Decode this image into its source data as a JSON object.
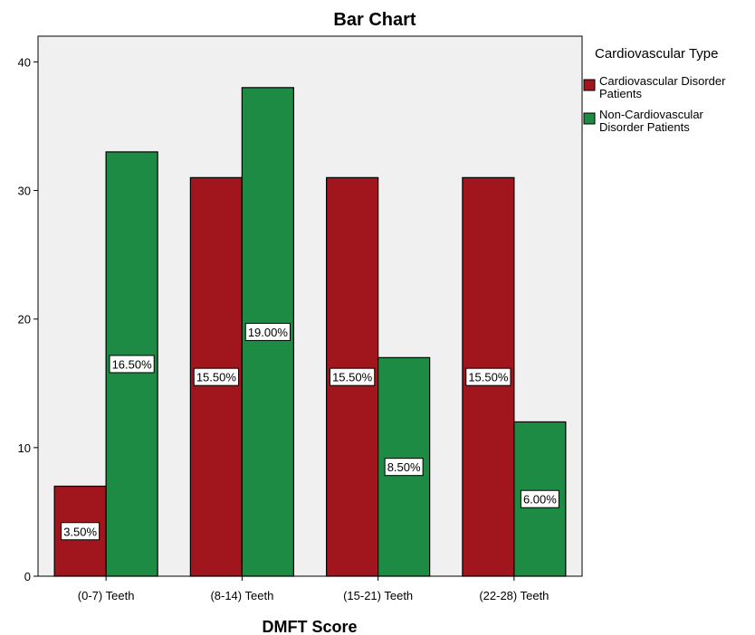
{
  "chart_data": {
    "type": "bar",
    "title": "Bar Chart",
    "xlabel": "DMFT Score",
    "ylabel": "",
    "ylim": [
      0,
      42
    ],
    "yticks": [
      0,
      10,
      20,
      30,
      40
    ],
    "grid": false,
    "legend_position": "right",
    "legend_title": "Cardiovascular Type",
    "background": "#f0f0f0",
    "categories": [
      "(0-7) Teeth",
      "(8-14) Teeth",
      "(15-21) Teeth",
      "(22-28) Teeth"
    ],
    "series": [
      {
        "name": "Cardiovascular Disorder Patients",
        "legend_lines": [
          "Cardiovascular Disorder",
          "Patients"
        ],
        "color": "#a0161c",
        "values": [
          7,
          31,
          31,
          31
        ],
        "labels": [
          "3.50%",
          "15.50%",
          "15.50%",
          "15.50%"
        ]
      },
      {
        "name": "Non-Cardiovascular Disorder Patients",
        "legend_lines": [
          "Non-Cardiovascular",
          "Disorder Patients"
        ],
        "color": "#1e8b45",
        "values": [
          33,
          38,
          17,
          12
        ],
        "labels": [
          "16.50%",
          "19.00%",
          "8.50%",
          "6.00%"
        ]
      }
    ]
  }
}
